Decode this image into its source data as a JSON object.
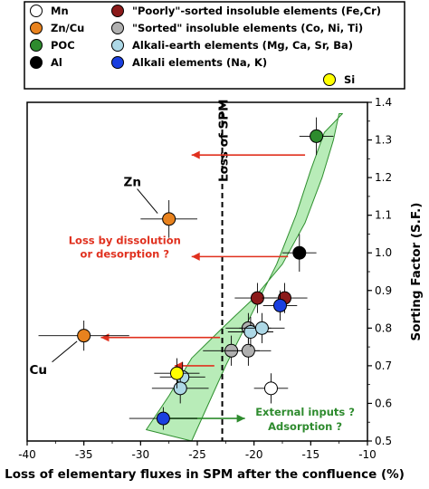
{
  "chart_data": {
    "type": "scatter",
    "xlabel": "Loss of elementary fluxes in SPM after the confluence (%)",
    "ylabel": "Sorting Factor (S.F.)",
    "xlim": [
      -40,
      -10
    ],
    "ylim": [
      0.5,
      1.4
    ],
    "xticks": [
      "-40",
      "-35",
      "-30",
      "-25",
      "-20",
      "-15",
      "-10"
    ],
    "yticks": [
      "0.5",
      "0.6",
      "0.7",
      "0.8",
      "0.9",
      "1.0",
      "1.1",
      "1.2",
      "1.3",
      "1.4"
    ],
    "grid": false,
    "legend_position": "top",
    "colors": {
      "band_fill": "#b8ecb8",
      "band_stroke": "#2f8f2f",
      "red_annotation": "#e0301e",
      "green_annotation": "#2e8b2e"
    },
    "legend": [
      {
        "label": "Mn",
        "color": "#ffffff"
      },
      {
        "label": "\"Poorly\"-sorted insoluble elements (Fe,Cr)",
        "color": "#8b1a1a"
      },
      {
        "label": "Zn/Cu",
        "color": "#e8821e"
      },
      {
        "label": "\"Sorted\" insoluble elements (Co, Ni, Ti)",
        "color": "#b0b0b0"
      },
      {
        "label": "POC",
        "color": "#2e8b2e"
      },
      {
        "label": "Alkali-earth elements (Mg, Ca, Sr, Ba)",
        "color": "#add8e6"
      },
      {
        "label": "Al",
        "color": "#000000"
      },
      {
        "label": "Alkali elements (Na, K)",
        "color": "#1a3fe0"
      },
      {
        "label": "Si",
        "color": "#ffff00"
      }
    ],
    "series": [
      {
        "name": "Mn",
        "color": "#ffffff",
        "points": [
          {
            "x": -18.5,
            "y": 0.64,
            "xerr": 1.5,
            "yerr": 0.04
          }
        ]
      },
      {
        "name": "\"Poorly\"-sorted insoluble elements (Fe,Cr)",
        "color": "#8b1a1a",
        "points": [
          {
            "x": -19.7,
            "y": 0.88,
            "xerr": 2.0,
            "yerr": 0.04
          },
          {
            "x": -17.3,
            "y": 0.88,
            "xerr": 2.0,
            "yerr": 0.04
          }
        ]
      },
      {
        "name": "Zn/Cu",
        "color": "#e8821e",
        "points": [
          {
            "x": -27.5,
            "y": 1.09,
            "xerr": 2.5,
            "yerr": 0.05
          },
          {
            "x": -35.0,
            "y": 0.78,
            "xerr": 4.0,
            "yerr": 0.04
          }
        ]
      },
      {
        "name": "\"Sorted\" insoluble elements (Co, Ni, Ti)",
        "color": "#b0b0b0",
        "points": [
          {
            "x": -22.0,
            "y": 0.74,
            "xerr": 2.5,
            "yerr": 0.04
          },
          {
            "x": -20.5,
            "y": 0.74,
            "xerr": 2.0,
            "yerr": 0.04
          },
          {
            "x": -20.5,
            "y": 0.8,
            "xerr": 2.0,
            "yerr": 0.04
          }
        ]
      },
      {
        "name": "POC",
        "color": "#2e8b2e",
        "points": [
          {
            "x": -14.5,
            "y": 1.31,
            "xerr": 1.5,
            "yerr": 0.05
          }
        ]
      },
      {
        "name": "Alkali-earth elements (Mg, Ca, Sr, Ba)",
        "color": "#add8e6",
        "points": [
          {
            "x": -26.3,
            "y": 0.67,
            "xerr": 2.0,
            "yerr": 0.04
          },
          {
            "x": -26.5,
            "y": 0.64,
            "xerr": 2.5,
            "yerr": 0.04
          },
          {
            "x": -20.3,
            "y": 0.79,
            "xerr": 2.0,
            "yerr": 0.04
          },
          {
            "x": -19.3,
            "y": 0.8,
            "xerr": 2.0,
            "yerr": 0.04
          }
        ]
      },
      {
        "name": "Al",
        "color": "#000000",
        "points": [
          {
            "x": -16.0,
            "y": 1.0,
            "xerr": 1.5,
            "yerr": 0.05
          }
        ]
      },
      {
        "name": "Alkali elements (Na, K)",
        "color": "#1a3fe0",
        "points": [
          {
            "x": -17.7,
            "y": 0.86,
            "xerr": 1.5,
            "yerr": 0.04
          },
          {
            "x": -28.0,
            "y": 0.56,
            "xerr": 3.0,
            "yerr": 0.03
          }
        ]
      },
      {
        "name": "Si",
        "color": "#ffff00",
        "points": [
          {
            "x": -26.8,
            "y": 0.68,
            "xerr": 2.0,
            "yerr": 0.04
          }
        ]
      }
    ],
    "band": {
      "upper": [
        [
          -25.5,
          0.5
        ],
        [
          -22.5,
          0.7
        ],
        [
          -20.0,
          0.85
        ],
        [
          -18.0,
          0.97
        ],
        [
          -16.3,
          1.1
        ],
        [
          -15.0,
          1.22
        ],
        [
          -13.8,
          1.32
        ],
        [
          -12.2,
          1.37
        ]
      ],
      "lower": [
        [
          -29.5,
          0.53
        ],
        [
          -27.5,
          0.62
        ],
        [
          -25.5,
          0.72
        ],
        [
          -22.8,
          0.8
        ],
        [
          -20.0,
          0.88
        ],
        [
          -17.5,
          0.97
        ],
        [
          -15.5,
          1.08
        ],
        [
          -14.0,
          1.2
        ],
        [
          -13.0,
          1.3
        ],
        [
          -12.5,
          1.37
        ]
      ]
    },
    "vline": {
      "x": -22.8,
      "label": "Loss of SPM"
    },
    "annotations": {
      "zn_label": "Zn",
      "cu_label": "Cu",
      "dissolution": [
        "Loss by dissolution",
        "or desorption ?"
      ],
      "external": [
        "External inputs ?",
        "Adsorption ?"
      ]
    },
    "arrows": [
      {
        "from": [
          -15.5,
          1.26
        ],
        "to": [
          -25.5,
          1.26
        ],
        "color": "red"
      },
      {
        "from": [
          -17.0,
          0.99
        ],
        "to": [
          -25.5,
          0.99
        ],
        "color": "red"
      },
      {
        "from": [
          -23.0,
          0.775
        ],
        "to": [
          -33.5,
          0.775
        ],
        "color": "red"
      },
      {
        "from": [
          -23.5,
          0.7
        ],
        "to": [
          -27.0,
          0.7
        ],
        "color": "red"
      },
      {
        "from": [
          -27.5,
          0.56
        ],
        "to": [
          -20.8,
          0.56
        ],
        "color": "green"
      }
    ]
  }
}
